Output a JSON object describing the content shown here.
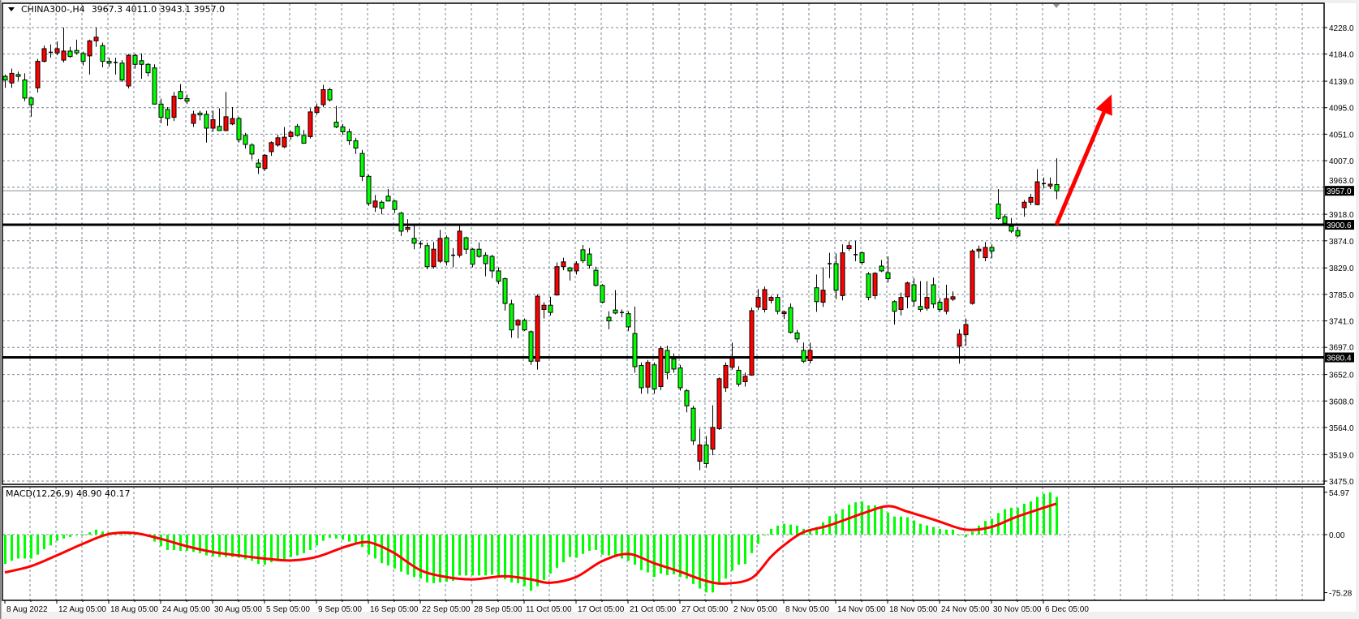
{
  "header": {
    "symbol": "CHINA300-,H4",
    "ohlc": "3967.3 4011.0 3943.1 3957.0"
  },
  "colors": {
    "background": "#ffffff",
    "grid": "#7a8694",
    "bull_body": "#ff0000",
    "bear_body": "#00ff00",
    "outline": "#000000",
    "macd_histogram": "#00ff00",
    "macd_signal": "#ff0000",
    "annotation_arrow": "#ff0000"
  },
  "indicator": {
    "label": "MACD(12,26,9) 48.90 40.17",
    "name": "MACD",
    "params": "12,26,9",
    "main_value": 48.9,
    "signal_value": 40.17
  },
  "chart_data": [
    {
      "type": "candlestick",
      "timeframe": "H4",
      "ylim": [
        3475.0,
        4228.0
      ],
      "y_ticks": [
        "4228.0",
        "4184.0",
        "4139.0",
        "4095.0",
        "4051.0",
        "4007.0",
        "3963.0",
        "3918.0",
        "3874.0",
        "3829.0",
        "3785.0",
        "3741.0",
        "3697.0",
        "3652.0",
        "3608.0",
        "3564.0",
        "3519.0",
        "3475.0"
      ],
      "x_tick_labels": [
        "8 Aug 2022",
        "12 Aug 05:00",
        "18 Aug 05:00",
        "24 Aug 05:00",
        "30 Aug 05:00",
        "5 Sep 05:00",
        "9 Sep 05:00",
        "16 Sep 05:00",
        "22 Sep 05:00",
        "28 Sep 05:00",
        "11 Oct 05:00",
        "17 Oct 05:00",
        "21 Oct 05:00",
        "27 Oct 05:00",
        "2 Nov 05:00",
        "8 Nov 05:00",
        "14 Nov 05:00",
        "18 Nov 05:00",
        "24 Nov 05:00",
        "30 Nov 05:00",
        "6 Dec 05:00"
      ],
      "x_tick_every_bars": 8,
      "grid": true,
      "current_price": {
        "value": 3957.0,
        "label": "3957.0"
      },
      "horizontal_lines": [
        {
          "value": 3900.6,
          "label": "3900.6"
        },
        {
          "value": 3680.4,
          "label": "3680.4"
        }
      ],
      "annotation": {
        "type": "arrow",
        "direction": "up",
        "from": {
          "bar": 162,
          "price": 3900.6
        },
        "to": {
          "bar": 170,
          "price": 4117
        }
      },
      "ohlc": [
        [
          4147,
          4150,
          4128,
          4141
        ],
        [
          4136,
          4160,
          4128,
          4152
        ],
        [
          4150,
          4155,
          4140,
          4147
        ],
        [
          4141,
          4152,
          4106,
          4111
        ],
        [
          4111,
          4113,
          4080,
          4100
        ],
        [
          4128,
          4176,
          4120,
          4172
        ],
        [
          4172,
          4198,
          4170,
          4193
        ],
        [
          4187,
          4200,
          4178,
          4186
        ],
        [
          4186,
          4205,
          4182,
          4193
        ],
        [
          4174,
          4228,
          4170,
          4189
        ],
        [
          4189,
          4196,
          4178,
          4180
        ],
        [
          4190,
          4208,
          4183,
          4186
        ],
        [
          4185,
          4188,
          4165,
          4172
        ],
        [
          4181,
          4208,
          4150,
          4206
        ],
        [
          4206,
          4228,
          4196,
          4212
        ],
        [
          4198,
          4203,
          4162,
          4172
        ],
        [
          4172,
          4178,
          4163,
          4169
        ],
        [
          4170,
          4178,
          4150,
          4170
        ],
        [
          4169,
          4174,
          4138,
          4141
        ],
        [
          4131,
          4184,
          4127,
          4182
        ],
        [
          4182,
          4184,
          4160,
          4167
        ],
        [
          4173,
          4185,
          4143,
          4167
        ],
        [
          4167,
          4169,
          4147,
          4153
        ],
        [
          4161,
          4167,
          4100,
          4101
        ],
        [
          4101,
          4110,
          4069,
          4079
        ],
        [
          4092,
          4096,
          4065,
          4077
        ],
        [
          4079,
          4121,
          4073,
          4114
        ],
        [
          4122,
          4134,
          4109,
          4110
        ],
        [
          4110,
          4117,
          4101,
          4106
        ],
        [
          4069,
          4090,
          4063,
          4084
        ],
        [
          4086,
          4090,
          4074,
          4083
        ],
        [
          4084,
          4090,
          4037,
          4061
        ],
        [
          4061,
          4090,
          4055,
          4075
        ],
        [
          4064,
          4094,
          4059,
          4057
        ],
        [
          4057,
          4121,
          4056,
          4080
        ],
        [
          4068,
          4096,
          4066,
          4077
        ],
        [
          4077,
          4080,
          4037,
          4042
        ],
        [
          4049,
          4053,
          4027,
          4034
        ],
        [
          4033,
          4036,
          4009,
          4018
        ],
        [
          4003,
          4010,
          3985,
          3996
        ],
        [
          3994,
          4018,
          3990,
          4016
        ],
        [
          4022,
          4039,
          4015,
          4037
        ],
        [
          4033,
          4050,
          4030,
          4045
        ],
        [
          4030,
          4063,
          4028,
          4046
        ],
        [
          4047,
          4057,
          4042,
          4054
        ],
        [
          4064,
          4068,
          4047,
          4049
        ],
        [
          4049,
          4058,
          4035,
          4036
        ],
        [
          4047,
          4094,
          4044,
          4088
        ],
        [
          4087,
          4102,
          4083,
          4096
        ],
        [
          4100,
          4133,
          4096,
          4125
        ],
        [
          4125,
          4128,
          4105,
          4108
        ],
        [
          4071,
          4098,
          4061,
          4063
        ],
        [
          4063,
          4068,
          4050,
          4055
        ],
        [
          4055,
          4060,
          4033,
          4040
        ],
        [
          4040,
          4045,
          4018,
          4028
        ],
        [
          4019,
          4025,
          3973,
          3981
        ],
        [
          3981,
          3984,
          3932,
          3936
        ],
        [
          3930,
          3950,
          3922,
          3940
        ],
        [
          3938,
          3941,
          3918,
          3928
        ],
        [
          3948,
          3960,
          3940,
          3940
        ],
        [
          3940,
          3942,
          3920,
          3926
        ],
        [
          3920,
          3922,
          3882,
          3890
        ],
        [
          3893,
          3910,
          3888,
          3896
        ],
        [
          3878,
          3900,
          3860,
          3870
        ],
        [
          3869,
          3874,
          3862,
          3869
        ],
        [
          3866,
          3871,
          3827,
          3831
        ],
        [
          3831,
          3872,
          3828,
          3860
        ],
        [
          3840,
          3892,
          3837,
          3878
        ],
        [
          3879,
          3883,
          3833,
          3839
        ],
        [
          3850,
          3862,
          3830,
          3850
        ],
        [
          3850,
          3900,
          3846,
          3890
        ],
        [
          3879,
          3881,
          3852,
          3860
        ],
        [
          3860,
          3862,
          3830,
          3835
        ],
        [
          3860,
          3871,
          3846,
          3848
        ],
        [
          3850,
          3855,
          3815,
          3836
        ],
        [
          3848,
          3851,
          3812,
          3824
        ],
        [
          3824,
          3830,
          3802,
          3807
        ],
        [
          3811,
          3813,
          3758,
          3770
        ],
        [
          3769,
          3776,
          3713,
          3726
        ],
        [
          3734,
          3744,
          3712,
          3742
        ],
        [
          3742,
          3745,
          3724,
          3726
        ],
        [
          3723,
          3725,
          3668,
          3674
        ],
        [
          3674,
          3785,
          3660,
          3782
        ],
        [
          3760,
          3772,
          3745,
          3767
        ],
        [
          3767,
          3781,
          3750,
          3755
        ],
        [
          3784,
          3838,
          3783,
          3831
        ],
        [
          3831,
          3846,
          3825,
          3839
        ],
        [
          3829,
          3831,
          3808,
          3824
        ],
        [
          3824,
          3840,
          3818,
          3836
        ],
        [
          3859,
          3867,
          3837,
          3841
        ],
        [
          3852,
          3862,
          3828,
          3833
        ],
        [
          3825,
          3831,
          3798,
          3800
        ],
        [
          3800,
          3802,
          3770,
          3772
        ],
        [
          3747,
          3757,
          3727,
          3741
        ],
        [
          3759,
          3792,
          3752,
          3754
        ],
        [
          3755,
          3760,
          3747,
          3755
        ],
        [
          3753,
          3757,
          3724,
          3731
        ],
        [
          3720,
          3765,
          3655,
          3665
        ],
        [
          3667,
          3672,
          3620,
          3630
        ],
        [
          3631,
          3676,
          3620,
          3672
        ],
        [
          3668,
          3672,
          3620,
          3628
        ],
        [
          3632,
          3699,
          3626,
          3695
        ],
        [
          3692,
          3700,
          3644,
          3655
        ],
        [
          3678,
          3687,
          3655,
          3661
        ],
        [
          3663,
          3668,
          3625,
          3630
        ],
        [
          3625,
          3628,
          3589,
          3600
        ],
        [
          3596,
          3600,
          3535,
          3542
        ],
        [
          3508,
          3562,
          3493,
          3535
        ],
        [
          3535,
          3550,
          3497,
          3504
        ],
        [
          3528,
          3601,
          3518,
          3564
        ],
        [
          3562,
          3647,
          3560,
          3645
        ],
        [
          3630,
          3672,
          3623,
          3667
        ],
        [
          3664,
          3705,
          3660,
          3679
        ],
        [
          3659,
          3666,
          3632,
          3636
        ],
        [
          3640,
          3655,
          3632,
          3649
        ],
        [
          3651,
          3763,
          3650,
          3758
        ],
        [
          3764,
          3794,
          3759,
          3780
        ],
        [
          3760,
          3798,
          3755,
          3793
        ],
        [
          3775,
          3783,
          3770,
          3780
        ],
        [
          3780,
          3785,
          3752,
          3757
        ],
        [
          3753,
          3758,
          3744,
          3756
        ],
        [
          3763,
          3770,
          3720,
          3722
        ],
        [
          3721,
          3726,
          3705,
          3711
        ],
        [
          3692,
          3705,
          3671,
          3674
        ],
        [
          3675,
          3705,
          3670,
          3692
        ],
        [
          3796,
          3818,
          3756,
          3773
        ],
        [
          3772,
          3830,
          3764,
          3792
        ],
        [
          3836,
          3854,
          3812,
          3836
        ],
        [
          3836,
          3853,
          3777,
          3792
        ],
        [
          3783,
          3868,
          3775,
          3854
        ],
        [
          3861,
          3873,
          3857,
          3866
        ],
        [
          3851,
          3874,
          3840,
          3851
        ],
        [
          3854,
          3856,
          3834,
          3838
        ],
        [
          3819,
          3822,
          3775,
          3780
        ],
        [
          3783,
          3822,
          3777,
          3820
        ],
        [
          3832,
          3842,
          3822,
          3824
        ],
        [
          3821,
          3848,
          3805,
          3811
        ],
        [
          3773,
          3775,
          3735,
          3757
        ],
        [
          3760,
          3788,
          3750,
          3780
        ],
        [
          3781,
          3806,
          3762,
          3804
        ],
        [
          3801,
          3812,
          3765,
          3774
        ],
        [
          3765,
          3807,
          3756,
          3760
        ],
        [
          3762,
          3807,
          3758,
          3780
        ],
        [
          3801,
          3813,
          3762,
          3769
        ],
        [
          3772,
          3779,
          3756,
          3760
        ],
        [
          3757,
          3801,
          3752,
          3778
        ],
        [
          3777,
          3790,
          3774,
          3781
        ],
        [
          3699,
          3727,
          3670,
          3719
        ],
        [
          3718,
          3745,
          3700,
          3735
        ],
        [
          3770,
          3860,
          3768,
          3857
        ],
        [
          3857,
          3866,
          3845,
          3860
        ],
        [
          3846,
          3872,
          3840,
          3863
        ],
        [
          3863,
          3868,
          3845,
          3857
        ],
        [
          3935,
          3960,
          3909,
          3911
        ],
        [
          3914,
          3918,
          3899,
          3903
        ],
        [
          3898,
          3912,
          3887,
          3890
        ],
        [
          3891,
          3897,
          3880,
          3882
        ],
        [
          3929,
          3942,
          3914,
          3938
        ],
        [
          3938,
          3952,
          3933,
          3946
        ],
        [
          3934,
          3993,
          3933,
          3972
        ],
        [
          3969,
          3979,
          3961,
          3969
        ],
        [
          3965,
          3979,
          3960,
          3968
        ],
        [
          3967.3,
          4011.0,
          3943.1,
          3957.0
        ]
      ]
    },
    {
      "type": "bar+line",
      "name": "MACD(12,26,9)",
      "ylim": [
        -75.28,
        54.97
      ],
      "y_ticks": [
        "54.97",
        "0.00",
        "-75.28"
      ],
      "histogram": [
        -38,
        -34,
        -31,
        -31,
        -31,
        -26,
        -19,
        -14,
        -8,
        -5,
        -3,
        -1,
        -1,
        3,
        6.5,
        4,
        3,
        1,
        -1,
        3,
        1,
        -1,
        -3,
        -9,
        -15,
        -20,
        -20,
        -21,
        -21,
        -22.5,
        -24,
        -27,
        -28,
        -29,
        -29,
        -29,
        -30,
        -32,
        -34,
        -38,
        -39,
        -36,
        -33,
        -32,
        -29,
        -27,
        -24,
        -20,
        -14,
        -8,
        -4,
        -5,
        -6.5,
        -9,
        -12,
        -16,
        -26,
        -31,
        -37,
        -40,
        -44,
        -48,
        -52,
        -55,
        -57,
        -62,
        -63,
        -62,
        -61,
        -60,
        -53,
        -53,
        -53,
        -53,
        -53,
        -52,
        -54,
        -58,
        -62,
        -63,
        -67,
        -73,
        -67,
        -59,
        -50.5,
        -43,
        -36,
        -29,
        -30,
        -25,
        -21,
        -20,
        -26,
        -27,
        -27,
        -31,
        -34,
        -39,
        -46,
        -49,
        -55,
        -50.5,
        -52.5,
        -51.5,
        -55,
        -57,
        -64,
        -70,
        -75,
        -75,
        -65,
        -57,
        -47,
        -39,
        -38,
        -24,
        -12,
        0,
        7.5,
        11.6,
        14,
        13,
        11.6,
        7.5,
        5,
        10,
        16,
        24,
        27,
        33,
        39,
        42,
        43,
        38,
        38,
        35.5,
        28.7,
        23.5,
        23.5,
        22.5,
        18.4,
        14,
        12,
        10,
        7.5,
        6.5,
        6.5,
        0,
        -3,
        4,
        11.6,
        17.7,
        20.5,
        28,
        33,
        35,
        35,
        40,
        43,
        49,
        53,
        54.97,
        48.9
      ],
      "signal": {
        "bar": [
          0,
          4,
          8,
          12,
          16,
          20,
          24,
          28,
          32,
          36,
          40,
          44,
          48,
          52,
          55,
          57,
          60,
          64,
          68,
          72,
          77,
          81,
          84,
          88,
          92,
          96,
          100,
          104,
          108,
          111,
          115,
          118,
          120,
          123,
          127,
          132,
          136,
          139,
          143.5,
          148,
          152,
          156,
          162
        ],
        "value": [
          -49,
          -41,
          -27,
          -12,
          0.7,
          2,
          -5.5,
          -15,
          -22.5,
          -27,
          -31,
          -33.5,
          -29,
          -17,
          -10,
          -12,
          -24,
          -46,
          -55,
          -58,
          -54,
          -58,
          -62.5,
          -55,
          -34.5,
          -25,
          -37,
          -48,
          -60,
          -63.5,
          -56.7,
          -29,
          -14,
          3,
          12,
          27,
          37,
          30,
          18.4,
          6.5,
          10,
          23.5,
          40.17
        ]
      }
    }
  ]
}
